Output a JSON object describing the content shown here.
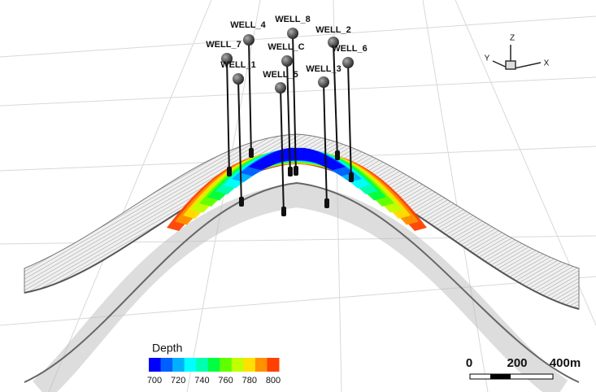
{
  "wells": [
    {
      "label": "WELL_8"
    },
    {
      "label": "WELL_4"
    },
    {
      "label": "WELL_7"
    },
    {
      "label": "WELL_1"
    },
    {
      "label": "WELL_C"
    },
    {
      "label": "WELL_5"
    },
    {
      "label": "WELL_2"
    },
    {
      "label": "WELL_6"
    },
    {
      "label": "WELL_3"
    }
  ],
  "legend": {
    "title": "Depth",
    "ticks": [
      700,
      720,
      740,
      760,
      780,
      800
    ],
    "colors": [
      "#0000ff",
      "#0060ff",
      "#00b0ff",
      "#00ffff",
      "#00ffb0",
      "#00ff40",
      "#60ff00",
      "#c0ff00",
      "#ffe000",
      "#ff9000",
      "#ff4000"
    ]
  },
  "scale_bar": {
    "labels": [
      "0",
      "200",
      "400m"
    ]
  },
  "axes": {
    "x": "X",
    "y": "Y",
    "z": "Z"
  }
}
